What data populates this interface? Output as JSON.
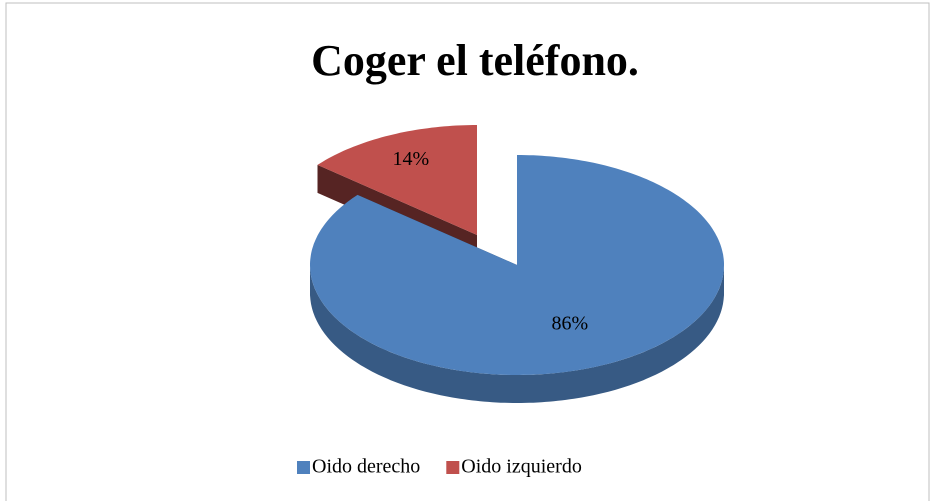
{
  "chart_data": {
    "type": "pie",
    "title": "Coger el teléfono.",
    "categories": [
      "Oido derecho",
      "Oido izquierdo"
    ],
    "values": [
      86,
      14
    ],
    "value_labels": [
      "86%",
      "14%"
    ],
    "colors": [
      "#4f81bd",
      "#c0504d"
    ],
    "legend": "bottom"
  }
}
